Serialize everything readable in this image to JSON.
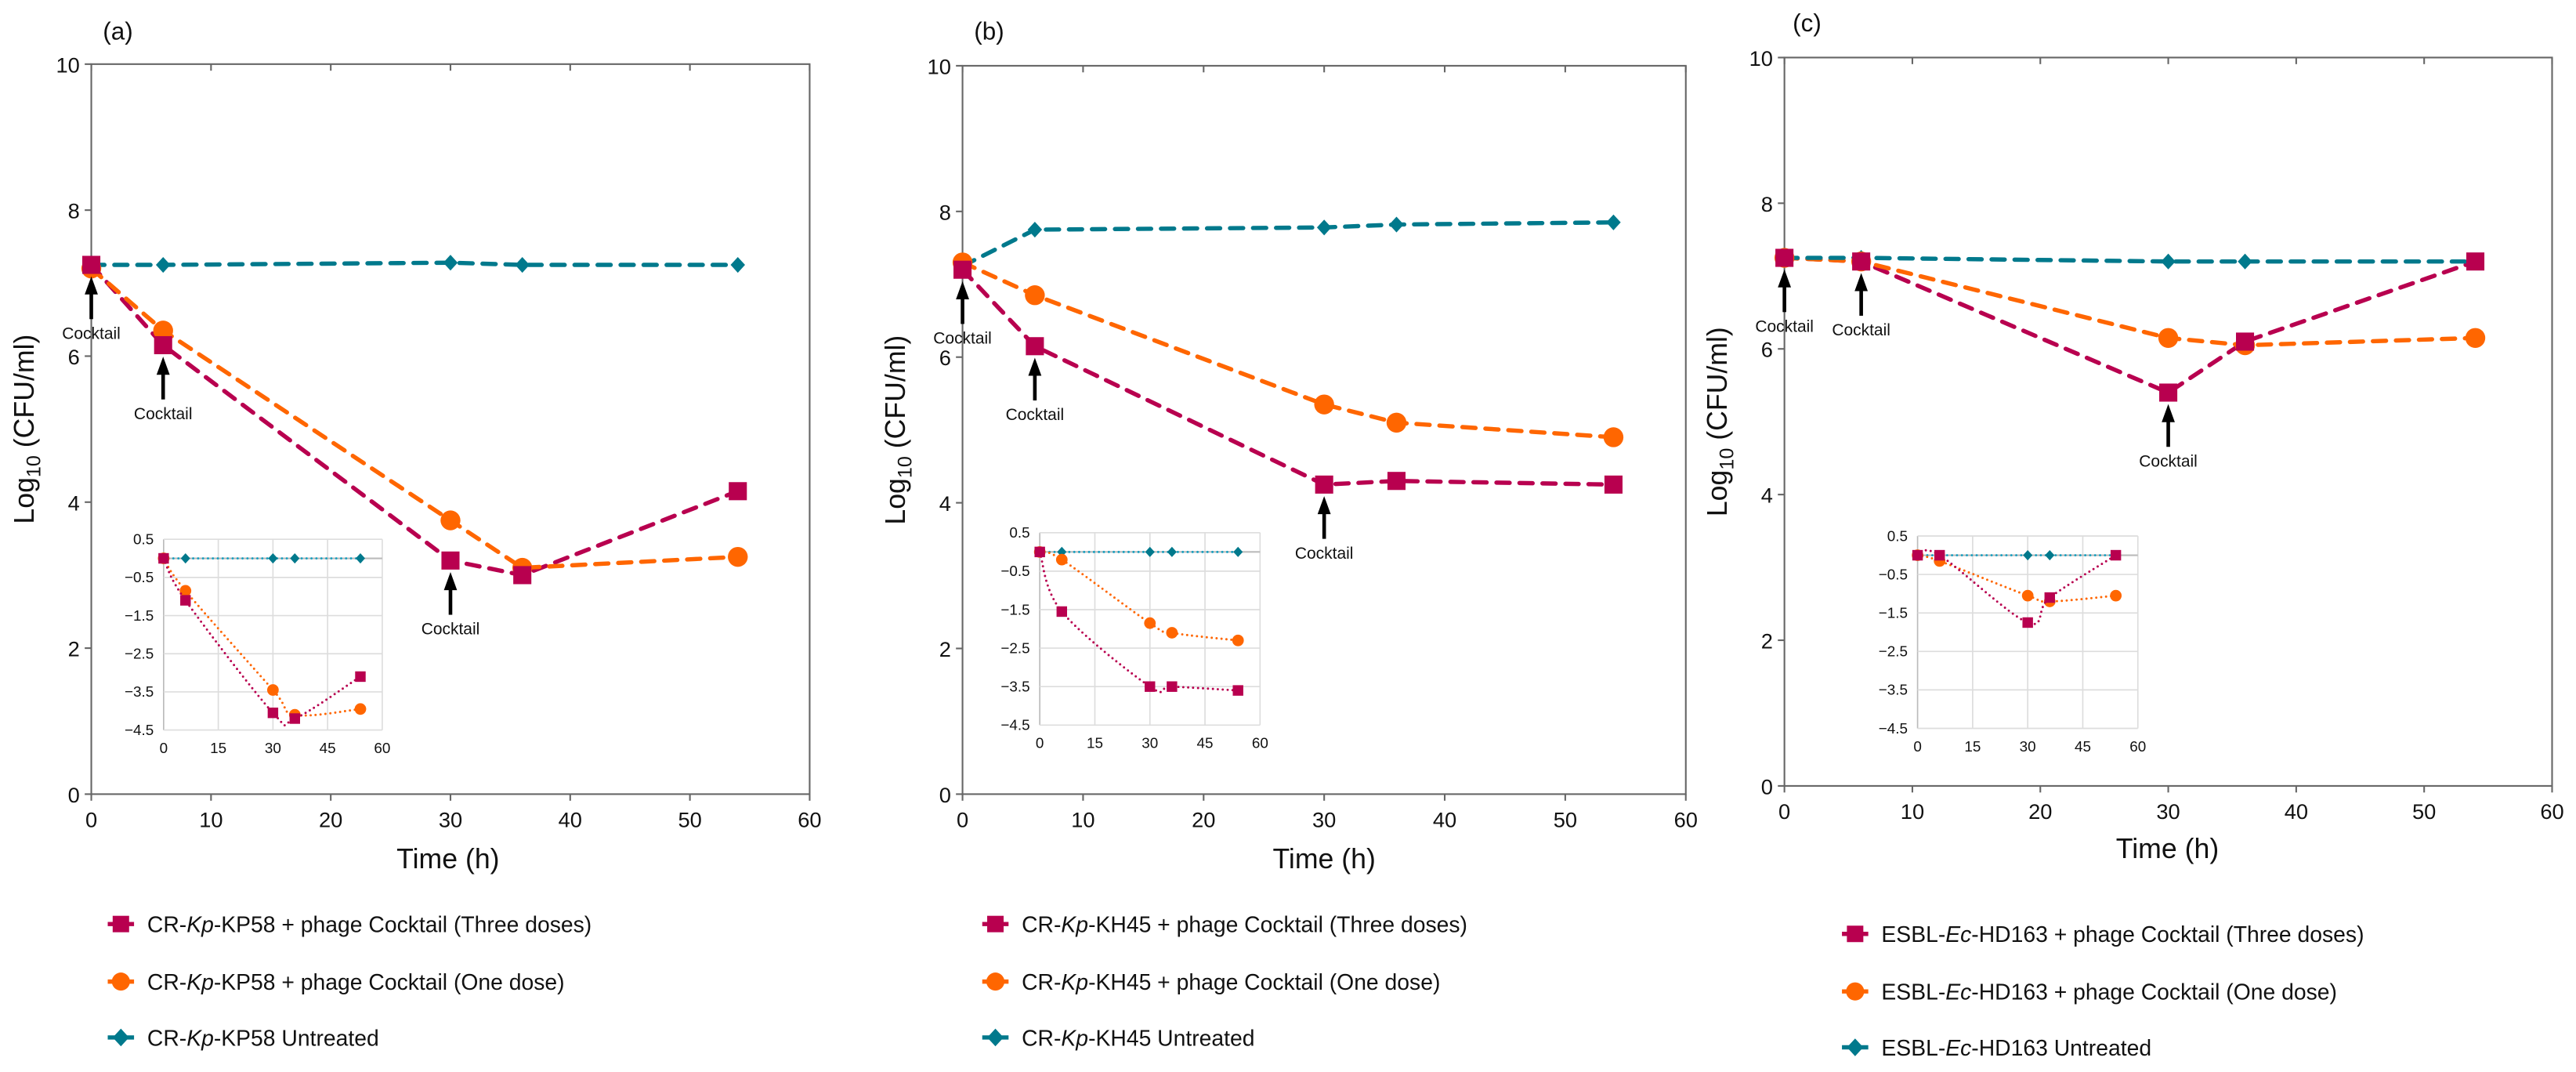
{
  "colors": {
    "three": "#B8004F",
    "one": "#FF6600",
    "untreated": "#00798C",
    "untreated_inset": "#1A9FBF"
  },
  "chart_data": [
    {
      "type": "line",
      "panel_label": "(a)",
      "xlabel": "Time (h)",
      "ylabel_main": "Log",
      "ylabel_sub": "10",
      "ylabel_rest": " (CFU/ml)",
      "xlim": [
        0,
        60
      ],
      "ylim": [
        0,
        10
      ],
      "xticks": [
        "0",
        "10",
        "20",
        "30",
        "40",
        "50",
        "60"
      ],
      "yticks": [
        "0",
        "2",
        "4",
        "6",
        "8",
        "10"
      ],
      "x": [
        0,
        6,
        30,
        36,
        54
      ],
      "series": [
        {
          "key": "three",
          "legend": [
            "CR-",
            "Kp",
            "-KP58 + phage Cocktail (Three doses)"
          ],
          "values": [
            7.25,
            6.15,
            3.2,
            3.0,
            4.15
          ]
        },
        {
          "key": "one",
          "legend": [
            "CR-",
            "Kp",
            "-KP58 + phage Cocktail (One dose)"
          ],
          "values": [
            7.2,
            6.35,
            3.75,
            3.1,
            3.25
          ]
        },
        {
          "key": "untreated",
          "legend": [
            "CR-",
            "Kp",
            "-KP58 Untreated"
          ],
          "values": [
            7.25,
            7.25,
            7.28,
            7.25,
            7.25
          ]
        }
      ],
      "annotations": [
        {
          "text": "Cocktail",
          "x": 0,
          "y": 7.25
        },
        {
          "text": "Cocktail",
          "x": 6,
          "y": 6.15
        },
        {
          "text": "Cocktail",
          "x": 30,
          "y": 3.2
        }
      ],
      "inset": {
        "xlim": [
          0,
          60
        ],
        "ylim": [
          -4.5,
          0.5
        ],
        "xticks": [
          "0",
          "15",
          "30",
          "45",
          "60"
        ],
        "yticks": [
          "0.5",
          "−0.5",
          "−1.5",
          "−2.5",
          "−3.5",
          "−4.5"
        ],
        "series": {
          "three": [
            0,
            -1.1,
            -4.05,
            -4.2,
            -3.1
          ],
          "one": [
            0,
            -0.85,
            -3.45,
            -4.1,
            -3.95
          ],
          "untreated": [
            0,
            0,
            0,
            0,
            0
          ]
        }
      }
    },
    {
      "type": "line",
      "panel_label": "(b)",
      "xlabel": "Time (h)",
      "ylabel_main": "Log",
      "ylabel_sub": "10",
      "ylabel_rest": " (CFU/ml)",
      "xlim": [
        0,
        60
      ],
      "ylim": [
        0,
        10
      ],
      "xticks": [
        "0",
        "10",
        "20",
        "30",
        "40",
        "50",
        "60"
      ],
      "yticks": [
        "0",
        "2",
        "4",
        "6",
        "8",
        "10"
      ],
      "x": [
        0,
        6,
        30,
        36,
        54
      ],
      "series": [
        {
          "key": "three",
          "legend": [
            "CR-",
            "Kp",
            "-KH45 + phage Cocktail (Three doses)"
          ],
          "values": [
            7.2,
            6.15,
            4.25,
            4.3,
            4.25
          ]
        },
        {
          "key": "one",
          "legend": [
            "CR-",
            "Kp",
            "-KH45 + phage Cocktail (One dose)"
          ],
          "values": [
            7.3,
            6.85,
            5.35,
            5.1,
            4.9
          ]
        },
        {
          "key": "untreated",
          "legend": [
            "CR-",
            "Kp",
            "-KH45 Untreated"
          ],
          "values": [
            7.25,
            7.75,
            7.78,
            7.82,
            7.85
          ]
        }
      ],
      "annotations": [
        {
          "text": "Cocktail",
          "x": 0,
          "y": 7.2
        },
        {
          "text": "Cocktail",
          "x": 6,
          "y": 6.15
        },
        {
          "text": "Cocktail",
          "x": 30,
          "y": 4.25
        }
      ],
      "inset": {
        "xlim": [
          0,
          60
        ],
        "ylim": [
          -4.5,
          0.5
        ],
        "xticks": [
          "0",
          "15",
          "30",
          "45",
          "60"
        ],
        "yticks": [
          "0.5",
          "−0.5",
          "−1.5",
          "−2.5",
          "−3.5",
          "−4.5"
        ],
        "series": {
          "three": [
            0,
            -1.55,
            -3.5,
            -3.5,
            -3.6
          ],
          "one": [
            0,
            -0.2,
            -1.85,
            -2.1,
            -2.3
          ],
          "untreated": [
            0,
            0,
            0,
            0,
            0
          ]
        }
      }
    },
    {
      "type": "line",
      "panel_label": "(c)",
      "xlabel": "Time (h)",
      "ylabel_main": "Log",
      "ylabel_sub": "10",
      "ylabel_rest": " (CFU/ml)",
      "xlim": [
        0,
        60
      ],
      "ylim": [
        0,
        10
      ],
      "xticks": [
        "0",
        "10",
        "20",
        "30",
        "40",
        "50",
        "60"
      ],
      "yticks": [
        "0",
        "2",
        "4",
        "6",
        "8",
        "10"
      ],
      "x": [
        0,
        6,
        30,
        36,
        54
      ],
      "series": [
        {
          "key": "three",
          "legend": [
            "ESBL-",
            "Ec",
            "-HD163 + phage Cocktail (Three doses)"
          ],
          "values": [
            7.25,
            7.2,
            5.4,
            6.1,
            7.2
          ]
        },
        {
          "key": "one",
          "legend": [
            "ESBL-",
            "Ec",
            "-HD163 + phage Cocktail (One dose)"
          ],
          "values": [
            7.25,
            7.2,
            6.15,
            6.05,
            6.15
          ]
        },
        {
          "key": "untreated",
          "legend": [
            "ESBL-",
            "Ec",
            "-HD163 Untreated"
          ],
          "values": [
            7.25,
            7.25,
            7.2,
            7.2,
            7.2
          ]
        }
      ],
      "annotations": [
        {
          "text": "Cocktail",
          "x": 0,
          "y": 7.25
        },
        {
          "text": "Cocktail",
          "x": 6,
          "y": 7.2
        },
        {
          "text": "Cocktail",
          "x": 30,
          "y": 5.4
        }
      ],
      "inset": {
        "xlim": [
          0,
          60
        ],
        "ylim": [
          -4.5,
          0.5
        ],
        "xticks": [
          "0",
          "15",
          "30",
          "45",
          "60"
        ],
        "yticks": [
          "0.5",
          "−0.5",
          "−1.5",
          "−2.5",
          "−3.5",
          "−4.5"
        ],
        "series": {
          "three": [
            0,
            0,
            -1.75,
            -1.1,
            0
          ],
          "one": [
            0,
            -0.15,
            -1.05,
            -1.2,
            -1.05
          ],
          "untreated": [
            0,
            0,
            0,
            0,
            0
          ]
        }
      }
    }
  ]
}
